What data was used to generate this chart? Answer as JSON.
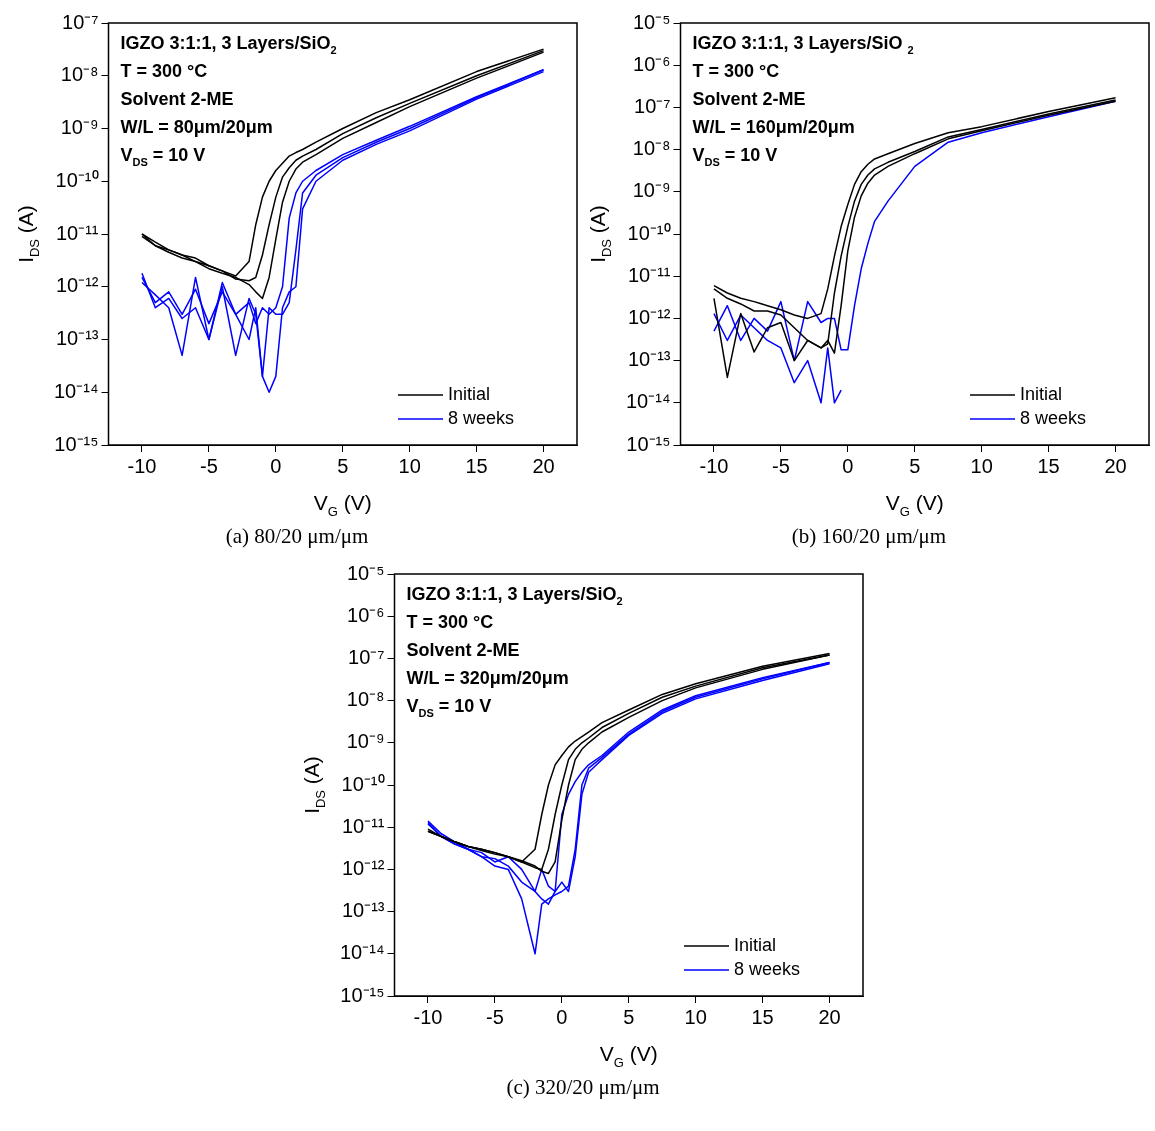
{
  "chart_data": [
    {
      "type": "line",
      "title": "(a) 80/20 μm/μm",
      "xlabel": "V$_{G}$ (V)",
      "ylabel": "I$_{DS}$ (A)",
      "annotations": [
        "IGZO 3:1:1, 3 Layers/SiO$_{2}$",
        "T = 300 °C",
        "Solvent 2-ME",
        "W/L = 80μm/20μm",
        "V$_{DS}$ = 10 V"
      ],
      "log": "y",
      "legend": "bottom right",
      "marker": "none",
      "xlim": [
        -12.5,
        22.5
      ],
      "xticks": [
        -10,
        -5,
        0,
        5,
        10,
        15,
        20
      ],
      "ylim": [
        1e-15,
        1e-07
      ],
      "yticks": [
        {
          "value": 1e-15,
          "label": "10⁻¹⁵"
        },
        {
          "value": 1e-14,
          "label": "10⁻¹⁴"
        },
        {
          "value": 1e-13,
          "label": "10⁻¹³"
        },
        {
          "value": 1e-12,
          "label": "10⁻¹²"
        },
        {
          "value": 1e-11,
          "label": "10⁻¹¹"
        },
        {
          "value": 1e-10,
          "label": "10⁻¹⁰"
        },
        {
          "value": 1e-09,
          "label": "10⁻⁹"
        },
        {
          "value": 1e-08,
          "label": "10⁻⁸"
        },
        {
          "value": 1e-07,
          "label": "10⁻⁷"
        }
      ],
      "x": [
        -10,
        -9,
        -8,
        -7,
        -6,
        -5,
        -4,
        -3,
        -2,
        -1.5,
        -1,
        -0.5,
        0,
        0.5,
        1,
        1.5,
        2,
        3,
        5,
        7.5,
        10,
        15,
        20
      ],
      "series": [
        {
          "name": "Initial",
          "color": "#000000",
          "values": [
            1e-11,
            7e-12,
            5e-12,
            4e-12,
            3.5e-12,
            2.5e-12,
            2e-12,
            1.6e-12,
            3e-12,
            1.5e-11,
            5e-11,
            1e-10,
            1.6e-10,
            2.2e-10,
            3e-10,
            3.5e-10,
            4e-10,
            5.5e-10,
            1e-09,
            2e-09,
            3.5e-09,
            1.2e-08,
            3.2e-08
          ]
        },
        {
          "color": "#000000",
          "values": [
            9e-12,
            6e-12,
            5e-12,
            4e-12,
            3e-12,
            2.5e-12,
            2e-12,
            1.4e-12,
            1.3e-12,
            1.5e-12,
            4e-12,
            1.5e-11,
            5e-11,
            1.2e-10,
            1.8e-10,
            2.5e-10,
            3e-10,
            4e-10,
            8e-10,
            1.6e-09,
            3e-09,
            1e-08,
            3e-08
          ]
        },
        {
          "color": "#000000",
          "values": [
            1e-11,
            6e-12,
            4.5e-12,
            3.5e-12,
            3e-12,
            2.2e-12,
            1.8e-12,
            1.5e-12,
            1.1e-12,
            8e-13,
            6e-13,
            1.5e-12,
            8e-12,
            4e-11,
            1e-10,
            1.7e-10,
            2.3e-10,
            3.2e-10,
            6.5e-10,
            1.3e-09,
            2.6e-09,
            9e-09,
            2.8e-08
          ]
        },
        {
          "name": "8 weeks",
          "color": "#0000ff",
          "values": [
            1.5e-12,
            5e-13,
            8e-13,
            3e-13,
            9e-13,
            2e-13,
            8e-13,
            3e-13,
            5e-13,
            2e-13,
            4e-13,
            3e-13,
            4e-13,
            1e-12,
            2e-11,
            6e-11,
            1e-10,
            1.6e-10,
            3.2e-10,
            6e-10,
            1.1e-09,
            4e-09,
            1.3e-08
          ]
        },
        {
          "color": "#0000ff",
          "values": [
            1.2e-12,
            7e-13,
            4e-13,
            5e-14,
            1.5e-12,
            1e-13,
            1e-12,
            5e-14,
            6e-13,
            3e-13,
            2e-14,
            4e-13,
            3e-13,
            3e-13,
            5e-13,
            5e-12,
            6e-11,
            1.3e-10,
            2.8e-10,
            5.5e-10,
            1e-09,
            3.8e-09,
            1.3e-08
          ]
        },
        {
          "color": "#0000ff",
          "values": [
            1.8e-12,
            4e-13,
            6e-13,
            2.5e-13,
            4e-13,
            1e-13,
            1.2e-12,
            3e-13,
            1e-13,
            4e-13,
            2e-14,
            1e-14,
            2e-14,
            4e-13,
            8e-13,
            1e-12,
            3e-11,
            1e-10,
            2.5e-10,
            5e-10,
            9e-10,
            3.6e-09,
            1.2e-08
          ]
        }
      ]
    },
    {
      "type": "line",
      "title": "(b) 160/20 μm/μm",
      "xlabel": "V$_{G}$ (V)",
      "ylabel": "I$_{DS}$ (A)",
      "annotations": [
        "IGZO 3:1:1, 3 Layers/SiO $_{2}$",
        "T = 300 °C",
        "Solvent 2-ME",
        "W/L = 160μm/20μm",
        "V$_{DS}$ = 10 V"
      ],
      "log": "y",
      "legend": "bottom right",
      "marker": "none",
      "xlim": [
        -12.5,
        22.5
      ],
      "xticks": [
        -10,
        -5,
        0,
        5,
        10,
        15,
        20
      ],
      "ylim": [
        1e-15,
        1e-05
      ],
      "yticks": [
        {
          "value": 1e-15,
          "label": "10⁻¹⁵"
        },
        {
          "value": 1e-14,
          "label": "10⁻¹⁴"
        },
        {
          "value": 1e-13,
          "label": "10⁻¹³"
        },
        {
          "value": 1e-12,
          "label": "10⁻¹²"
        },
        {
          "value": 1e-11,
          "label": "10⁻¹¹"
        },
        {
          "value": 1e-10,
          "label": "10⁻¹⁰"
        },
        {
          "value": 1e-09,
          "label": "10⁻⁹"
        },
        {
          "value": 1e-08,
          "label": "10⁻⁸"
        },
        {
          "value": 1e-07,
          "label": "10⁻⁷"
        },
        {
          "value": 1e-06,
          "label": "10⁻⁶"
        },
        {
          "value": 1e-05,
          "label": "10⁻⁵"
        }
      ],
      "x": [
        -10,
        -9,
        -8,
        -7,
        -6,
        -5,
        -4,
        -3,
        -2,
        -1.5,
        -1,
        -0.5,
        0,
        0.5,
        1,
        1.5,
        2,
        3,
        5,
        7.5,
        10,
        15,
        20
      ],
      "series": [
        {
          "name": "Initial",
          "color": "#000000",
          "values": [
            6e-12,
            4e-12,
            3e-12,
            2.5e-12,
            2e-12,
            1.6e-12,
            1.2e-12,
            1e-12,
            1.3e-12,
            5e-12,
            3e-11,
            1.5e-10,
            5e-10,
            1.5e-09,
            3e-09,
            4.5e-09,
            6e-09,
            8e-09,
            1.4e-08,
            2.5e-08,
            3.5e-08,
            8e-08,
            1.7e-07
          ]
        },
        {
          "color": "#000000",
          "values": [
            5e-12,
            3e-12,
            2.2e-12,
            1.5e-12,
            1.5e-12,
            1.2e-12,
            6e-13,
            3e-13,
            2e-13,
            2.5e-13,
            4e-12,
            3e-11,
            1.5e-10,
            6e-10,
            1.5e-09,
            2.5e-09,
            3.5e-09,
            5e-09,
            9e-09,
            2e-08,
            3e-08,
            7e-08,
            1.5e-07
          ]
        },
        {
          "color": "#000000",
          "values": [
            3e-12,
            4e-14,
            1.3e-12,
            1.6e-13,
            6e-13,
            8e-13,
            1e-13,
            3e-13,
            2e-13,
            3e-13,
            1.5e-13,
            2e-12,
            4e-11,
            2.5e-10,
            8e-10,
            1.6e-09,
            2.5e-09,
            4e-09,
            8e-09,
            1.8e-08,
            2.8e-08,
            6.5e-08,
            1.4e-07
          ]
        },
        {
          "name": "8 weeks",
          "color": "#0000ff",
          "values": [
            5e-13,
            2e-12,
            3e-13,
            1e-12,
            5e-13,
            2.5e-12,
            1e-13,
            2.5e-12,
            8e-13,
            1e-12,
            1e-12,
            1.8e-13,
            1.8e-13,
            2e-12,
            1.5e-11,
            6e-11,
            2e-10,
            6e-10,
            4e-09,
            1.5e-08,
            2.5e-08,
            6e-08,
            1.4e-07
          ]
        },
        {
          "color": "#0000ff",
          "values": [
            1.3e-12,
            3e-13,
            1.2e-12,
            6e-13,
            3e-13,
            2e-13,
            3e-14,
            1e-13,
            1e-14,
            2e-13,
            1e-14,
            2e-14,
            null,
            null,
            null,
            null,
            null,
            null,
            null,
            null,
            null,
            null,
            null
          ]
        }
      ]
    },
    {
      "type": "line",
      "title": "(c) 320/20 μm/μm",
      "xlabel": "V$_{G}$ (V)",
      "ylabel": "I$_{DS}$ (A)",
      "annotations": [
        "IGZO 3:1:1, 3 Layers/SiO$_{2}$",
        "T = 300 °C",
        "Solvent 2-ME",
        "W/L = 320μm/20μm",
        "V$_{DS}$ = 10 V"
      ],
      "log": "y",
      "legend": "bottom right",
      "marker": "none",
      "xlim": [
        -12.5,
        22.5
      ],
      "xticks": [
        -10,
        -5,
        0,
        5,
        10,
        15,
        20
      ],
      "ylim": [
        1e-15,
        1e-05
      ],
      "yticks": [
        {
          "value": 1e-15,
          "label": "10⁻¹⁵"
        },
        {
          "value": 1e-14,
          "label": "10⁻¹⁴"
        },
        {
          "value": 1e-13,
          "label": "10⁻¹³"
        },
        {
          "value": 1e-12,
          "label": "10⁻¹²"
        },
        {
          "value": 1e-11,
          "label": "10⁻¹¹"
        },
        {
          "value": 1e-10,
          "label": "10⁻¹⁰"
        },
        {
          "value": 1e-09,
          "label": "10⁻⁹"
        },
        {
          "value": 1e-08,
          "label": "10⁻⁸"
        },
        {
          "value": 1e-07,
          "label": "10⁻⁷"
        },
        {
          "value": 1e-06,
          "label": "10⁻⁶"
        },
        {
          "value": 1e-05,
          "label": "10⁻⁵"
        }
      ],
      "x": [
        -10,
        -9,
        -8,
        -7,
        -6,
        -5,
        -4,
        -3,
        -2,
        -1.5,
        -1,
        -0.5,
        0,
        0.5,
        1,
        1.5,
        2,
        3,
        5,
        7.5,
        10,
        15,
        20
      ],
      "series": [
        {
          "name": "Initial",
          "color": "#000000",
          "values": [
            8e-12,
            6e-12,
            4.5e-12,
            3.5e-12,
            3e-12,
            2.5e-12,
            2e-12,
            1.5e-12,
            3e-12,
            2e-11,
            1e-10,
            3e-10,
            5e-10,
            8e-10,
            1.1e-09,
            1.4e-09,
            1.8e-09,
            3e-09,
            6e-09,
            1.4e-08,
            2.5e-08,
            6.5e-08,
            1.3e-07
          ]
        },
        {
          "color": "#000000",
          "values": [
            9e-12,
            6e-12,
            4.5e-12,
            3.5e-12,
            3e-12,
            2.5e-12,
            2e-12,
            1.5e-12,
            1.1e-12,
            1e-12,
            3e-12,
            2e-11,
            1e-10,
            4e-10,
            7e-10,
            1e-09,
            1.3e-09,
            2.3e-09,
            5e-09,
            1.2e-08,
            2.2e-08,
            6e-08,
            1.2e-07
          ]
        },
        {
          "color": "#000000",
          "values": [
            8e-12,
            6e-12,
            4.5e-12,
            3.5e-12,
            2.8e-12,
            2.3e-12,
            2e-12,
            1.6e-12,
            1.2e-12,
            9e-13,
            8e-13,
            1.5e-12,
            1.5e-11,
            1e-10,
            4e-10,
            7e-10,
            1e-09,
            1.8e-09,
            4e-09,
            1e-08,
            2e-08,
            5.5e-08,
            1.2e-07
          ]
        },
        {
          "name": "8 weeks",
          "color": "#0000ff",
          "values": [
            1.4e-11,
            7e-12,
            4.5e-12,
            3e-12,
            2.5e-12,
            1.5e-12,
            2e-12,
            1e-12,
            3e-13,
            1e-12,
            4e-13,
            3e-13,
            2e-11,
            6e-11,
            1.2e-10,
            2e-10,
            3e-10,
            5e-10,
            1.8e-09,
            6e-09,
            1.3e-08,
            3.5e-08,
            8e-08
          ]
        },
        {
          "color": "#0000ff",
          "values": [
            1.2e-11,
            6e-12,
            4e-12,
            3e-12,
            2e-12,
            1.2e-12,
            1e-12,
            2e-13,
            1e-14,
            1.5e-13,
            2e-13,
            2.5e-13,
            3e-13,
            4e-13,
            3e-12,
            1e-10,
            2.5e-10,
            4.5e-10,
            1.6e-09,
            5.5e-09,
            1.2e-08,
            3.3e-08,
            8e-08
          ]
        },
        {
          "color": "#0000ff",
          "values": [
            1.3e-11,
            6e-12,
            4e-12,
            3e-12,
            2e-12,
            1.8e-12,
            1.2e-12,
            5e-13,
            3e-13,
            2e-13,
            1.5e-13,
            3e-13,
            5e-13,
            3e-13,
            2e-12,
            6e-11,
            2e-10,
            4e-10,
            1.5e-09,
            5e-09,
            1.1e-08,
            3e-08,
            7.5e-08
          ]
        }
      ]
    }
  ]
}
